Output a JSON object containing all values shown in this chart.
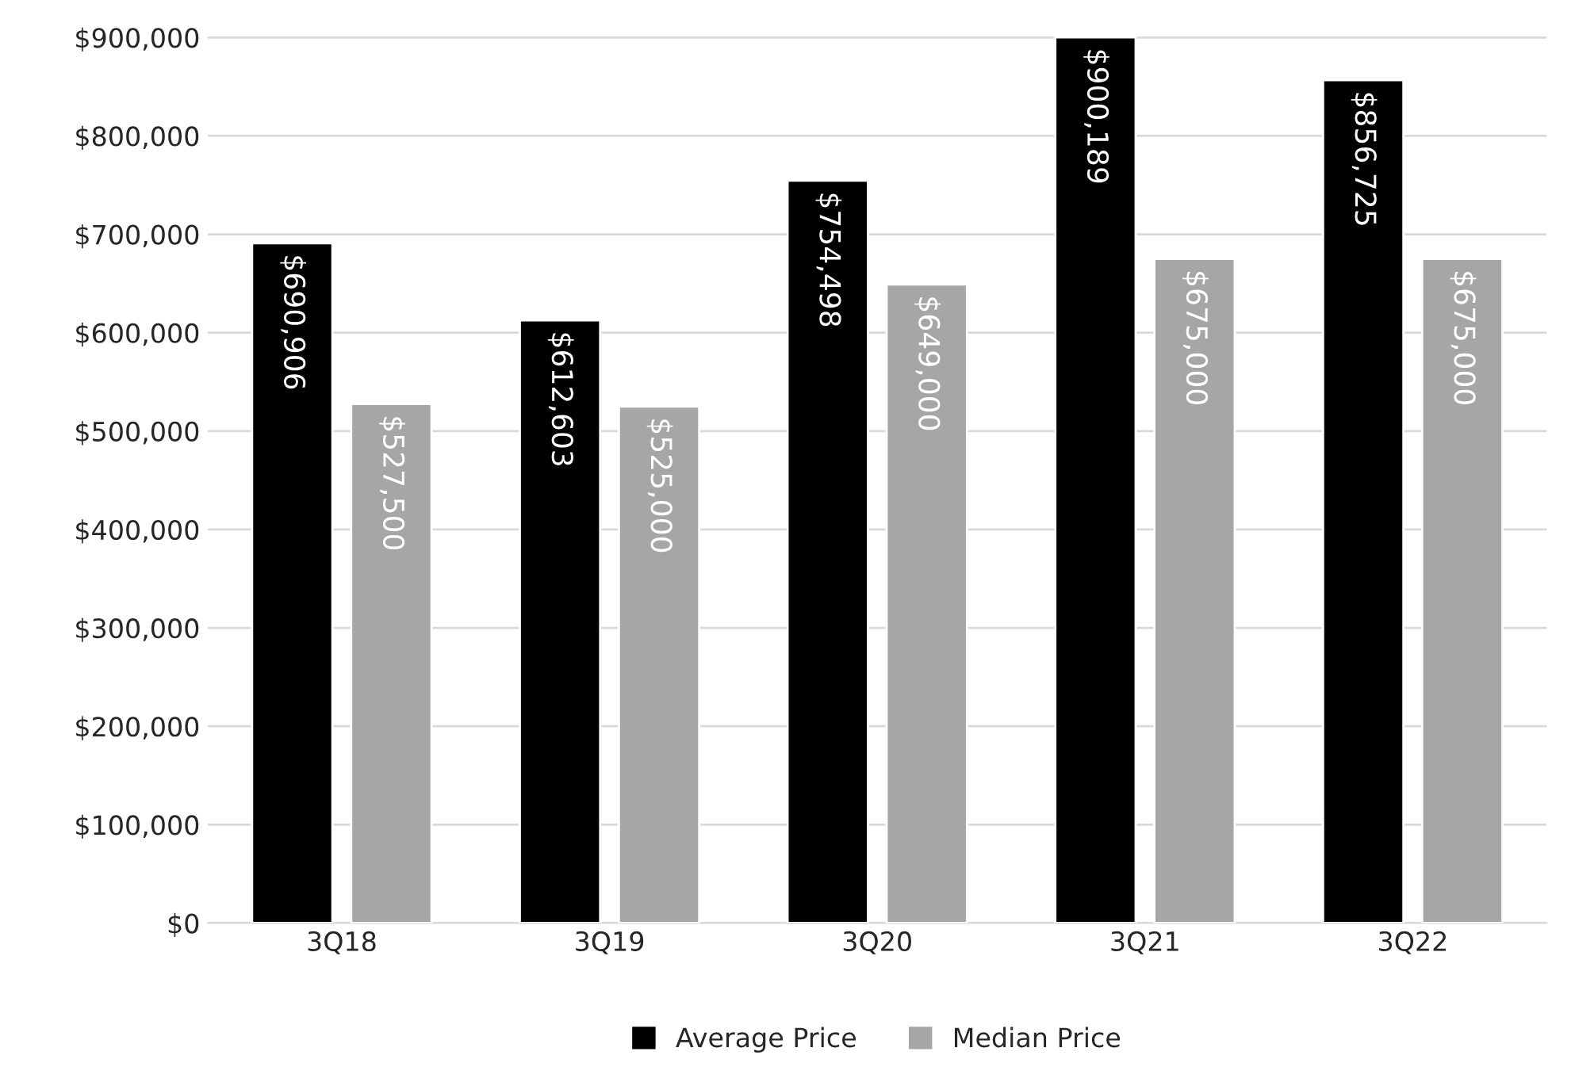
{
  "chart_data": {
    "type": "bar",
    "categories": [
      "3Q18",
      "3Q19",
      "3Q20",
      "3Q21",
      "3Q22"
    ],
    "series": [
      {
        "name": "Average Price",
        "color": "#000000",
        "values": [
          690906,
          612603,
          754498,
          900189,
          856725
        ],
        "value_labels": [
          "$690,906",
          "$612,603",
          "$754,498",
          "$900,189",
          "$856,725"
        ]
      },
      {
        "name": "Median Price",
        "color": "#a6a6a6",
        "values": [
          527500,
          525000,
          649000,
          675000,
          675000
        ],
        "value_labels": [
          "$527,500",
          "$525,000",
          "$649,000",
          "$675,000",
          "$675,000"
        ]
      }
    ],
    "ylim": [
      0,
      905000
    ],
    "yticks": [
      {
        "value": 0,
        "label": "$0"
      },
      {
        "value": 100000,
        "label": "$100,000"
      },
      {
        "value": 200000,
        "label": "$200,000"
      },
      {
        "value": 300000,
        "label": "$300,000"
      },
      {
        "value": 400000,
        "label": "$400,000"
      },
      {
        "value": 500000,
        "label": "$500,000"
      },
      {
        "value": 600000,
        "label": "$600,000"
      },
      {
        "value": 700000,
        "label": "$700,000"
      },
      {
        "value": 800000,
        "label": "$800,000"
      },
      {
        "value": 900000,
        "label": "$900,000"
      }
    ],
    "grid": "y",
    "legend": "bottom"
  }
}
